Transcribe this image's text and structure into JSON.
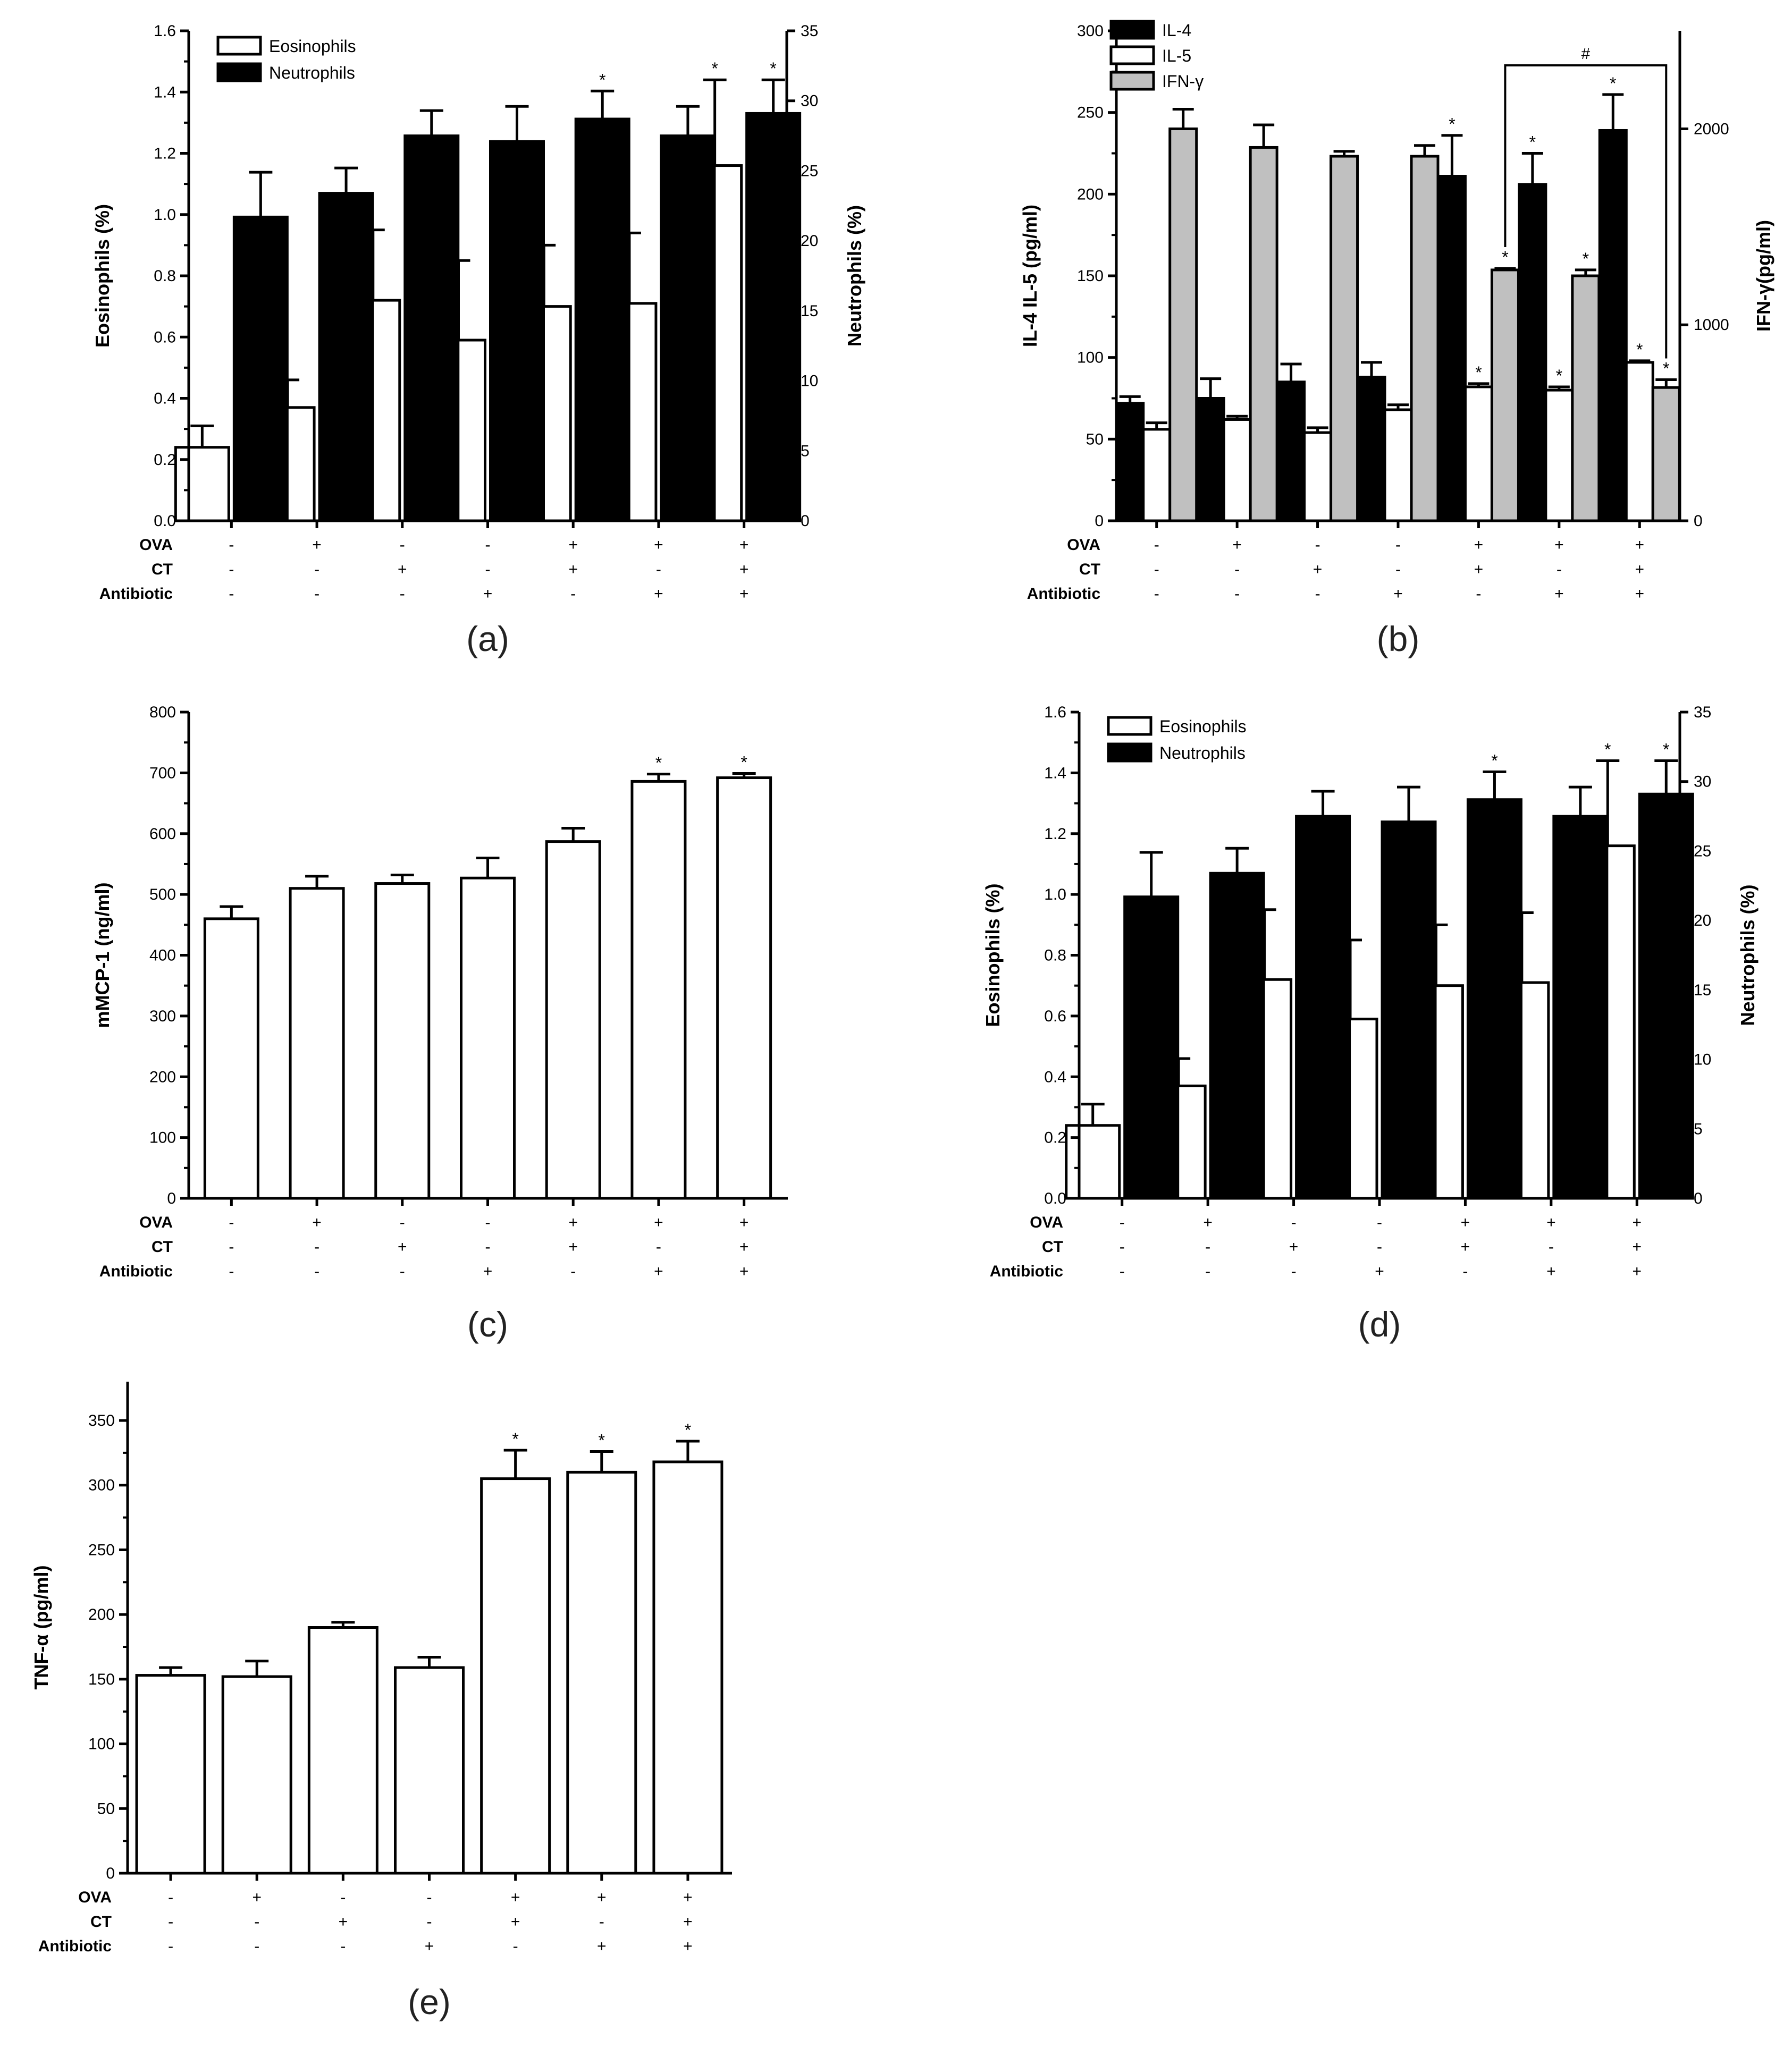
{
  "figure": {
    "treatment_rows": [
      "OVA",
      "CT",
      "Antibiotic"
    ],
    "treatment_signs": [
      [
        "-",
        "-",
        "-"
      ],
      [
        "+",
        "-",
        "-"
      ],
      [
        "-",
        "+",
        "-"
      ],
      [
        "-",
        "-",
        "+"
      ],
      [
        "+",
        "+",
        "-"
      ],
      [
        "+",
        "-",
        "+"
      ],
      [
        "+",
        "+",
        "+"
      ]
    ]
  },
  "chart_data": [
    {
      "id": "a",
      "panel_label": "(a)",
      "type": "bar",
      "ylabel": "Eosinophils (%)",
      "ylim": [
        0,
        1.6
      ],
      "yticks": [
        "0.0",
        "0.2",
        "0.4",
        "0.6",
        "0.8",
        "1.0",
        "1.2",
        "1.4",
        "1.6"
      ],
      "y2label": "Neutrophils (%)",
      "y2lim": [
        0,
        35
      ],
      "y2ticks": [
        "0",
        "5",
        "10",
        "15",
        "20",
        "25",
        "30",
        "35"
      ],
      "legend": [
        "Eosinophils",
        "Neutrophils"
      ],
      "series": [
        {
          "name": "Eosinophils",
          "axis": "left",
          "fill": "#ffffff",
          "values": [
            0.24,
            0.37,
            0.72,
            0.59,
            0.7,
            0.71,
            1.16
          ],
          "errors": [
            0.07,
            0.09,
            0.23,
            0.26,
            0.2,
            0.23,
            0.28
          ],
          "stars": [
            "",
            "",
            "",
            "",
            "",
            "",
            "*"
          ]
        },
        {
          "name": "Neutrophils",
          "axis": "right",
          "fill": "#000000",
          "values": [
            21.7,
            23.4,
            27.5,
            27.1,
            28.7,
            27.5,
            29.1
          ],
          "errors": [
            3.2,
            1.8,
            1.8,
            2.5,
            2.0,
            2.1,
            2.4
          ],
          "stars": [
            "",
            "",
            "",
            "",
            "*",
            "",
            "*"
          ]
        }
      ]
    },
    {
      "id": "b",
      "panel_label": "(b)",
      "type": "bar",
      "ylabel": "IL-4 IL-5 (pg/ml)",
      "ylim": [
        0,
        300
      ],
      "yticks": [
        "0",
        "50",
        "100",
        "150",
        "200",
        "250",
        "300"
      ],
      "y2label": "IFN-γ(pg/ml)",
      "y2lim": [
        0,
        2500
      ],
      "y2ticks": [
        "0",
        "1000",
        "2000"
      ],
      "legend": [
        "IL-4",
        "IL-5",
        "IFN-γ"
      ],
      "bracket_label": "#",
      "series": [
        {
          "name": "IL-4",
          "axis": "left",
          "fill": "#000000",
          "values": [
            72,
            75,
            85,
            88,
            211,
            206,
            239
          ],
          "errors": [
            4,
            12,
            11,
            9,
            25,
            19,
            22
          ],
          "stars": [
            "",
            "",
            "",
            "",
            "*",
            "*",
            "*"
          ]
        },
        {
          "name": "IL-5",
          "axis": "left",
          "fill": "#ffffff",
          "values": [
            56,
            62,
            54,
            68,
            82,
            80,
            97
          ],
          "errors": [
            4,
            2,
            3,
            3,
            2,
            2,
            1
          ],
          "stars": [
            "",
            "",
            "",
            "",
            "*",
            "*",
            "*"
          ]
        },
        {
          "name": "IFN-γ",
          "axis": "right",
          "fill": "#c0c0c0",
          "values": [
            2000,
            1905,
            1860,
            1860,
            1280,
            1250,
            680
          ],
          "errors": [
            100,
            115,
            25,
            55,
            8,
            30,
            40
          ],
          "stars": [
            "",
            "",
            "",
            "",
            "*",
            "*",
            "*"
          ]
        }
      ]
    },
    {
      "id": "c",
      "panel_label": "(c)",
      "type": "bar",
      "ylabel": "mMCP-1 (ng/ml)",
      "ylim": [
        0,
        800
      ],
      "yticks": [
        "0",
        "100",
        "200",
        "300",
        "400",
        "500",
        "600",
        "700",
        "800"
      ],
      "series": [
        {
          "name": "mMCP-1",
          "axis": "left",
          "fill": "#ffffff",
          "values": [
            460,
            510,
            518,
            527,
            587,
            686,
            692
          ],
          "errors": [
            20,
            20,
            14,
            33,
            22,
            12,
            7
          ],
          "stars": [
            "",
            "",
            "",
            "",
            "",
            "*",
            "*"
          ]
        }
      ]
    },
    {
      "id": "d",
      "panel_label": "(d)",
      "type": "bar",
      "ylabel": "Eosinophils (%)",
      "ylim": [
        0,
        1.6
      ],
      "yticks": [
        "0.0",
        "0.2",
        "0.4",
        "0.6",
        "0.8",
        "1.0",
        "1.2",
        "1.4",
        "1.6"
      ],
      "y2label": "Neutrophils (%)",
      "y2lim": [
        0,
        35
      ],
      "y2ticks": [
        "0",
        "5",
        "10",
        "15",
        "20",
        "25",
        "30",
        "35"
      ],
      "legend": [
        "Eosinophils",
        "Neutrophils"
      ],
      "series": [
        {
          "name": "Eosinophils",
          "axis": "left",
          "fill": "#ffffff",
          "values": [
            0.24,
            0.37,
            0.72,
            0.59,
            0.7,
            0.71,
            1.16
          ],
          "errors": [
            0.07,
            0.09,
            0.23,
            0.26,
            0.2,
            0.23,
            0.28
          ],
          "stars": [
            "",
            "",
            "",
            "",
            "",
            "",
            "*"
          ]
        },
        {
          "name": "Neutrophils",
          "axis": "right",
          "fill": "#000000",
          "values": [
            21.7,
            23.4,
            27.5,
            27.1,
            28.7,
            27.5,
            29.1
          ],
          "errors": [
            3.2,
            1.8,
            1.8,
            2.5,
            2.0,
            2.1,
            2.4
          ],
          "stars": [
            "",
            "",
            "",
            "",
            "*",
            "",
            "*"
          ]
        }
      ]
    },
    {
      "id": "e",
      "panel_label": "(e)",
      "type": "bar",
      "ylabel": "TNF-α (pg/ml)",
      "ylim": [
        0,
        380
      ],
      "yticks": [
        "0",
        "50",
        "100",
        "150",
        "200",
        "250",
        "300",
        "350"
      ],
      "series": [
        {
          "name": "TNF-α",
          "axis": "left",
          "fill": "#ffffff",
          "values": [
            153,
            152,
            190,
            159,
            305,
            310,
            318
          ],
          "errors": [
            6,
            12,
            4,
            8,
            22,
            16,
            16
          ],
          "stars": [
            "",
            "",
            "",
            "",
            "*",
            "*",
            "*"
          ]
        }
      ]
    }
  ]
}
